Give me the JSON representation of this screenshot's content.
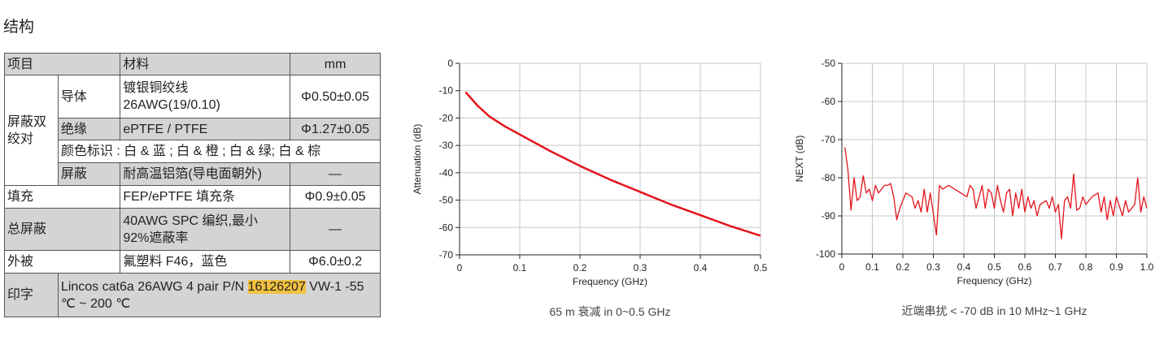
{
  "header": {
    "title": "结构"
  },
  "table": {
    "header": [
      "项目",
      "材料",
      "mm"
    ],
    "rows": [
      [
        "屏蔽双绞对",
        "导体",
        "镀银铜绞线 26AWG(19/0.10)",
        "Φ0.50±0.05"
      ],
      [
        "绝缘",
        "ePTFE / PTFE",
        "Φ1.27±0.05"
      ],
      [
        "颜色标识 : 白 & 蓝 ; 白 & 橙 ; 白 & 绿; 白 & 棕"
      ],
      [
        "屏蔽",
        "耐高温铝箔(导电面朝外)",
        "—"
      ],
      [
        "填充",
        "FEP/ePTFE 填充条",
        "Φ0.9±0.05"
      ],
      [
        "总屏蔽",
        "40AWG SPC 编织,最小92%遮蔽率",
        "—"
      ],
      [
        "外被",
        "氟塑料 F46，蓝色",
        "Φ6.0±0.2"
      ],
      [
        "印字",
        [
          "Lincos cat6a 26AWG 4 pair P/N ",
          "16126207",
          " VW-1 -55 ℃ ~ 200 ℃"
        ]
      ]
    ]
  },
  "chart_data": [
    {
      "type": "line",
      "x_label": "Frequency (GHz)",
      "y_label": "Attenuation (dB)",
      "caption": "65 m 衰减 in 0~0.5 GHz",
      "color": "#e3141b",
      "grid": true,
      "xlim": [
        0,
        0.5
      ],
      "xticks": [
        0,
        0.1,
        0.2,
        0.3,
        0.4,
        0.5
      ],
      "ylim": [
        -70,
        0
      ],
      "yticks": [
        0,
        -10,
        -20,
        -30,
        -40,
        -50,
        -60,
        -70
      ],
      "x": [
        0.01,
        0.02,
        0.03,
        0.05,
        0.075,
        0.1,
        0.15,
        0.2,
        0.25,
        0.3,
        0.35,
        0.4,
        0.45,
        0.5
      ],
      "values": [
        -10.5,
        -13,
        -15.5,
        -19.5,
        -23,
        -26,
        -32,
        -37.5,
        -42.5,
        -47,
        -51.5,
        -55.5,
        -59.5,
        -63
      ]
    },
    {
      "type": "line",
      "x_label": "Frequency (GHz)",
      "y_label": "NEXT (dB)",
      "caption": "近端串扰 < -70 dB in 10 MHz~1 GHz",
      "color": "#e3141b",
      "grid": true,
      "xlim": [
        0,
        1
      ],
      "xticks": [
        0,
        0.1,
        0.2,
        0.3,
        0.4,
        0.5,
        0.6,
        0.7,
        0.8,
        0.9,
        {
          "value": 1,
          "label": "1.0"
        }
      ],
      "ylim": [
        -100,
        -50
      ],
      "yticks": [
        -50,
        -60,
        -70,
        -80,
        -90,
        -100
      ],
      "x": [
        0.01,
        0.02,
        0.03,
        0.04,
        0.05,
        0.06,
        0.07,
        0.08,
        0.09,
        0.1,
        0.11,
        0.12,
        0.13,
        0.14,
        0.15,
        0.16,
        0.17,
        0.18,
        0.19,
        0.21,
        0.23,
        0.24,
        0.25,
        0.26,
        0.27,
        0.28,
        0.29,
        0.31,
        0.32,
        0.33,
        0.35,
        0.37,
        0.39,
        0.41,
        0.42,
        0.43,
        0.44,
        0.45,
        0.46,
        0.47,
        0.48,
        0.49,
        0.5,
        0.51,
        0.52,
        0.53,
        0.54,
        0.55,
        0.56,
        0.57,
        0.58,
        0.59,
        0.6,
        0.61,
        0.62,
        0.63,
        0.64,
        0.65,
        0.67,
        0.68,
        0.69,
        0.7,
        0.71,
        0.72,
        0.73,
        0.74,
        0.75,
        0.76,
        0.77,
        0.78,
        0.79,
        0.8,
        0.82,
        0.84,
        0.85,
        0.86,
        0.87,
        0.88,
        0.89,
        0.9,
        0.92,
        0.93,
        0.94,
        0.96,
        0.97,
        0.98,
        0.99,
        1.0
      ],
      "values": [
        -72,
        -78,
        -88.5,
        -80,
        -86,
        -85,
        -79.5,
        -84,
        -83,
        -86,
        -82,
        -84,
        -83,
        -82,
        -82,
        -81.5,
        -85,
        -91,
        -88,
        -84,
        -85,
        -88,
        -86,
        -89,
        -83,
        -89,
        -84,
        -95,
        -82,
        -83,
        -82,
        -83,
        -84,
        -85,
        -82,
        -83,
        -88,
        -85,
        -82,
        -88,
        -83,
        -84,
        -88,
        -82,
        -86,
        -89,
        -84,
        -83,
        -90,
        -84,
        -88,
        -83,
        -89,
        -85,
        -88,
        -86,
        -90,
        -87,
        -86,
        -88,
        -85,
        -89,
        -87,
        -96,
        -86,
        -85,
        -88,
        -79,
        -88.5,
        -88,
        -85,
        -87,
        -85,
        -84,
        -89,
        -85,
        -91,
        -86,
        -90,
        -85,
        -90,
        -86,
        -89,
        -87,
        -80,
        -89,
        -85,
        -88
      ]
    }
  ]
}
